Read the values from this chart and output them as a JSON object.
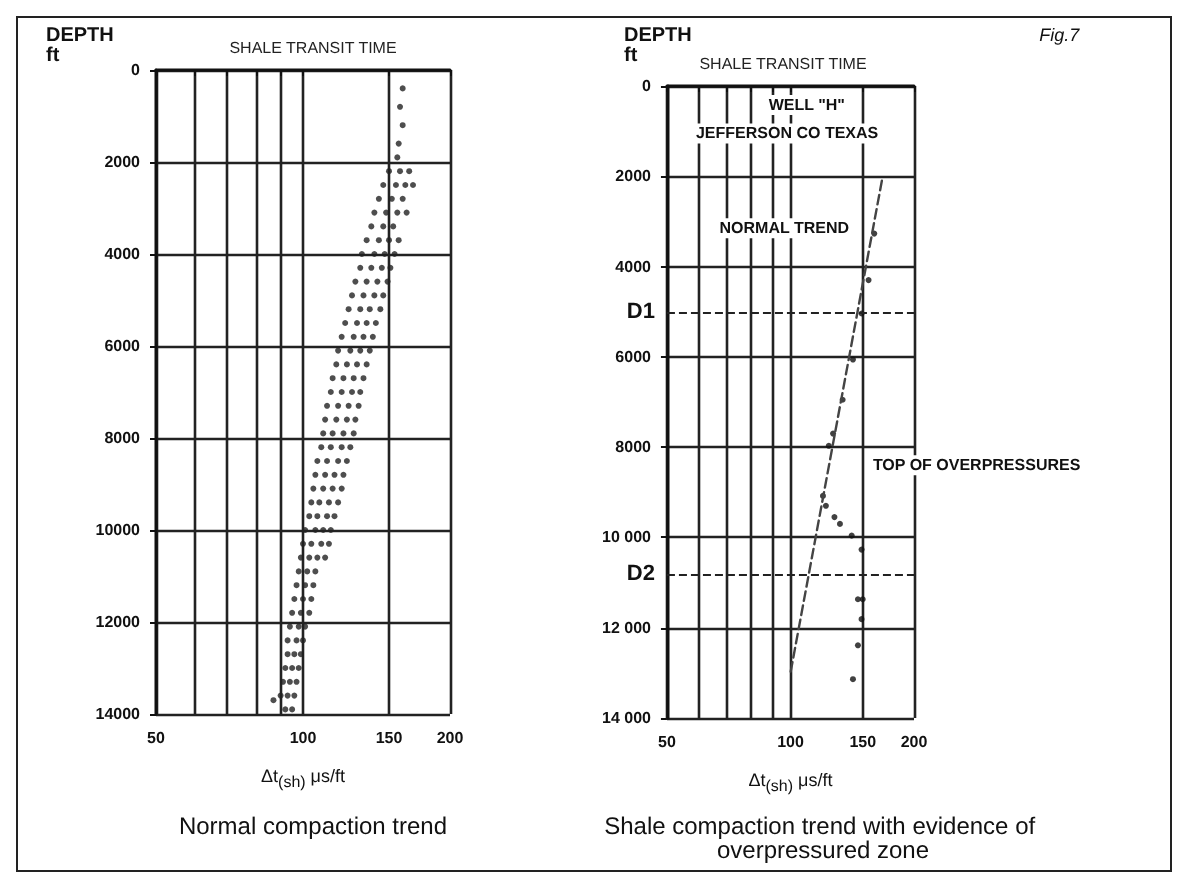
{
  "chart_data": [
    {
      "type": "scatter",
      "title": "SHALE TRANSIT TIME",
      "ylabel": "DEPTH ft",
      "xlabel": "Δt$_{(sh)}$ μs/ft",
      "subtitle": "Normal compaction trend",
      "log": "x",
      "grid": true,
      "marker": "circle",
      "xlim": [
        50,
        200
      ],
      "xticks": [
        50,
        {
          "value": 60,
          "label": null
        },
        {
          "value": 70,
          "label": null
        },
        {
          "value": 80,
          "label": null
        },
        {
          "value": 90,
          "label": null
        },
        100,
        150,
        200
      ],
      "ylim": [
        14000,
        0
      ],
      "yticks": [
        0,
        2000,
        4000,
        6000,
        8000,
        10000,
        12000,
        14000
      ],
      "series": [
        {
          "color": "#222222",
          "x": [
            160,
            158,
            160,
            157,
            156,
            150,
            158,
            165,
            146,
            155,
            162,
            168,
            143,
            152,
            160,
            140,
            148,
            156,
            163,
            138,
            146,
            153,
            135,
            143,
            150,
            157,
            132,
            140,
            147,
            154,
            131,
            138,
            145,
            151,
            128,
            135,
            142,
            149,
            126,
            133,
            140,
            146,
            124,
            131,
            137,
            144,
            122,
            129,
            135,
            141,
            120,
            127,
            133,
            139,
            118,
            125,
            131,
            137,
            117,
            123,
            129,
            135,
            115,
            121,
            127,
            133,
            114,
            120,
            126,
            131,
            112,
            118,
            124,
            130,
            111,
            117,
            123,
            128,
            110,
            115,
            121,
            127,
            109,
            114,
            120,
            125,
            107,
            112,
            118,
            123,
            106,
            111,
            116,
            121,
            105,
            110,
            115,
            120,
            104,
            108,
            113,
            118,
            103,
            107,
            112,
            116,
            101,
            106,
            110,
            114,
            100,
            104,
            109,
            113,
            99,
            103,
            107,
            111,
            98,
            102,
            106,
            97,
            101,
            105,
            96,
            100,
            104,
            95,
            99,
            103,
            94,
            98,
            101,
            93,
            97,
            100,
            93,
            96,
            99,
            92,
            95,
            98,
            91,
            94,
            97,
            90,
            93,
            96,
            92,
            95,
            87
          ],
          "values": [
            400,
            800,
            1200,
            1600,
            1900,
            2200,
            2200,
            2200,
            2500,
            2500,
            2500,
            2500,
            2800,
            2800,
            2800,
            3100,
            3100,
            3100,
            3100,
            3400,
            3400,
            3400,
            3700,
            3700,
            3700,
            3700,
            4000,
            4000,
            4000,
            4000,
            4300,
            4300,
            4300,
            4300,
            4600,
            4600,
            4600,
            4600,
            4900,
            4900,
            4900,
            4900,
            5200,
            5200,
            5200,
            5200,
            5500,
            5500,
            5500,
            5500,
            5800,
            5800,
            5800,
            5800,
            6100,
            6100,
            6100,
            6100,
            6400,
            6400,
            6400,
            6400,
            6700,
            6700,
            6700,
            6700,
            7000,
            7000,
            7000,
            7000,
            7300,
            7300,
            7300,
            7300,
            7600,
            7600,
            7600,
            7600,
            7900,
            7900,
            7900,
            7900,
            8200,
            8200,
            8200,
            8200,
            8500,
            8500,
            8500,
            8500,
            8800,
            8800,
            8800,
            8800,
            9100,
            9100,
            9100,
            9100,
            9400,
            9400,
            9400,
            9400,
            9700,
            9700,
            9700,
            9700,
            10000,
            10000,
            10000,
            10000,
            10300,
            10300,
            10300,
            10300,
            10600,
            10600,
            10600,
            10600,
            10900,
            10900,
            10900,
            11200,
            11200,
            11200,
            11500,
            11500,
            11500,
            11800,
            11800,
            11800,
            12100,
            12100,
            12100,
            12400,
            12400,
            12400,
            12700,
            12700,
            12700,
            13000,
            13000,
            13000,
            13300,
            13300,
            13300,
            13600,
            13600,
            13600,
            13900,
            13900,
            13700
          ]
        }
      ]
    },
    {
      "type": "scatter",
      "title": "SHALE TRANSIT TIME",
      "ylabel": "DEPTH ft",
      "xlabel": "Δt$_{(sh)}$ μs/ft",
      "subtitle": "Shale compaction trend with evidence of overpressured zone",
      "log": "x",
      "grid": true,
      "marker": "circle",
      "xlim": [
        50,
        200
      ],
      "xticks": [
        50,
        {
          "value": 60,
          "label": null
        },
        {
          "value": 70,
          "label": null
        },
        {
          "value": 80,
          "label": null
        },
        {
          "value": 90,
          "label": null
        },
        100,
        150,
        200
      ],
      "ylim": [
        14000,
        0
      ],
      "yticks": [
        0,
        2000,
        4000,
        6000,
        8000,
        {
          "value": 10000,
          "label": "10 000"
        },
        {
          "value": 12000,
          "label": "12 000"
        },
        {
          "value": 14000,
          "label": "14 000"
        }
      ],
      "annotations": [
        "WELL \"H\"",
        "JEFFERSON CO TEXAS",
        "NORMAL TREND",
        "TOP OF OVERPRESSURES",
        "Fig.7"
      ],
      "ref_lines": [
        {
          "axis": "y",
          "value": 5000,
          "label": "D1",
          "line_style": "dashed"
        },
        {
          "axis": "y",
          "value": 10800,
          "label": "D2",
          "line_style": "dashed"
        }
      ],
      "series": [
        {
          "type": "line",
          "color": "#444444",
          "line_style": "dashed",
          "marker": "none",
          "x": [
            167,
            100
          ],
          "values": [
            2100,
            13000
          ]
        },
        {
          "color": "#111111",
          "x": [
            160,
            155,
            149,
            142,
            134,
            127,
            124,
            120,
            122,
            128,
            132,
            141,
            149,
            150,
            146,
            149,
            146,
            142
          ],
          "values": [
            3270,
            4300,
            5040,
            6060,
            6950,
            7700,
            7970,
            9080,
            9300,
            9550,
            9700,
            9960,
            10270,
            11370,
            11370,
            11810,
            12390,
            13140
          ]
        }
      ]
    }
  ]
}
